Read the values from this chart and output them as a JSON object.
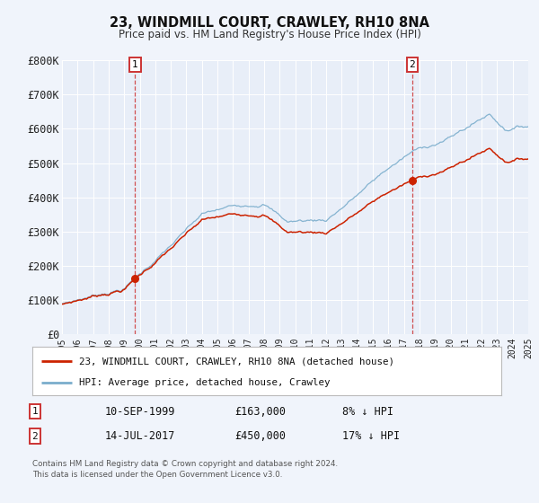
{
  "title": "23, WINDMILL COURT, CRAWLEY, RH10 8NA",
  "subtitle": "Price paid vs. HM Land Registry's House Price Index (HPI)",
  "legend_label_red": "23, WINDMILL COURT, CRAWLEY, RH10 8NA (detached house)",
  "legend_label_blue": "HPI: Average price, detached house, Crawley",
  "annotation1_date": "10-SEP-1999",
  "annotation1_price": "£163,000",
  "annotation1_hpi": "8% ↓ HPI",
  "annotation2_date": "14-JUL-2017",
  "annotation2_price": "£450,000",
  "annotation2_hpi": "17% ↓ HPI",
  "sale1_year": 1999.71,
  "sale1_value": 163000,
  "sale2_year": 2017.54,
  "sale2_value": 450000,
  "xmin": 1995,
  "xmax": 2025,
  "ymin": 0,
  "ymax": 800000,
  "yticks": [
    0,
    100000,
    200000,
    300000,
    400000,
    500000,
    600000,
    700000,
    800000
  ],
  "ytick_labels": [
    "£0",
    "£100K",
    "£200K",
    "£300K",
    "£400K",
    "£500K",
    "£600K",
    "£700K",
    "£800K"
  ],
  "fig_bg_color": "#f0f4fb",
  "plot_bg_color": "#e8eef8",
  "red_color": "#cc2200",
  "blue_color": "#7aadcc",
  "dashed_line_color": "#cc3333",
  "box_edge_color": "#cc3333",
  "grid_color": "#ffffff",
  "footer_text": "Contains HM Land Registry data © Crown copyright and database right 2024.\nThis data is licensed under the Open Government Licence v3.0."
}
